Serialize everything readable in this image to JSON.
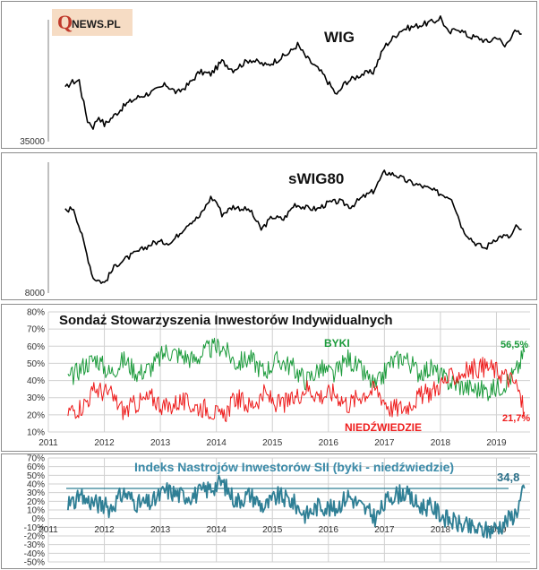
{
  "logo": {
    "q": "Q",
    "text": "NEWS.PL"
  },
  "colors": {
    "index_line": "#000000",
    "bulls": "#1a9a3a",
    "bears": "#ee1c1c",
    "sentiment": "#2f7f95",
    "sentiment_title": "#3a8aa8",
    "sentiment_label": "#2a6f88",
    "logo_bg": "#f6dcc4",
    "logo_red": "#c0392b"
  },
  "chart_data": [
    {
      "type": "line",
      "title": "WIG",
      "xrange": [
        2011,
        2019.6
      ],
      "ylabel_min": "35000",
      "ylim": [
        35000,
        66000
      ],
      "x": [
        2011.3,
        2011.4,
        2011.55,
        2011.6,
        2011.7,
        2011.8,
        2011.9,
        2012.0,
        2012.2,
        2012.4,
        2012.6,
        2012.9,
        2013.1,
        2013.3,
        2013.5,
        2013.7,
        2013.9,
        2014.1,
        2014.3,
        2014.6,
        2014.9,
        2015.1,
        2015.3,
        2015.45,
        2015.6,
        2015.9,
        2016.05,
        2016.15,
        2016.3,
        2016.6,
        2016.8,
        2017.0,
        2017.3,
        2017.6,
        2017.9,
        2018.0,
        2018.15,
        2018.3,
        2018.5,
        2018.7,
        2018.85,
        2019.0,
        2019.15,
        2019.3,
        2019.45
      ],
      "series": [
        {
          "name": "WIG",
          "values": [
            47500,
            49000,
            49500,
            46000,
            40000,
            38500,
            41000,
            39000,
            41500,
            44000,
            45500,
            47000,
            48500,
            46500,
            48500,
            51500,
            51000,
            54000,
            52000,
            54500,
            53000,
            54500,
            56000,
            58000,
            55000,
            51000,
            48000,
            46000,
            49000,
            51000,
            51500,
            57500,
            61500,
            62500,
            63500,
            64500,
            60500,
            62000,
            60000,
            59500,
            58500,
            60000,
            57500,
            61000,
            60500
          ]
        }
      ]
    },
    {
      "type": "line",
      "title": "sWIG80",
      "xrange": [
        2011,
        2019.6
      ],
      "ylabel_min": "8000",
      "ylim": [
        8000,
        18500
      ],
      "x": [
        2011.3,
        2011.45,
        2011.6,
        2011.8,
        2012.0,
        2012.2,
        2012.5,
        2012.7,
        2012.9,
        2013.2,
        2013.5,
        2013.7,
        2013.9,
        2014.0,
        2014.1,
        2014.3,
        2014.6,
        2014.8,
        2015.0,
        2015.2,
        2015.4,
        2015.6,
        2015.8,
        2016.0,
        2016.2,
        2016.4,
        2016.6,
        2016.8,
        2017.0,
        2017.2,
        2017.4,
        2017.6,
        2017.8,
        2018.0,
        2018.2,
        2018.4,
        2018.6,
        2018.8,
        2018.95,
        2019.1,
        2019.25,
        2019.35,
        2019.45
      ],
      "series": [
        {
          "name": "sWIG80",
          "values": [
            14500,
            14700,
            12500,
            9200,
            8800,
            10200,
            11000,
            11500,
            12000,
            12000,
            13500,
            14000,
            15500,
            15200,
            14200,
            14800,
            14500,
            13000,
            14000,
            13800,
            15000,
            14700,
            14600,
            15100,
            15200,
            14800,
            15500,
            16000,
            17500,
            17300,
            16800,
            16500,
            16200,
            15800,
            15500,
            13000,
            12000,
            11500,
            12200,
            12500,
            12400,
            13200,
            13000
          ]
        }
      ]
    },
    {
      "type": "line",
      "title": "Sondaż Stowarzyszenia Inwestorów Indywidualnych",
      "xrange": [
        2011,
        2019.6
      ],
      "ylim": [
        10,
        80
      ],
      "y_ticks": [
        "10%",
        "20%",
        "30%",
        "40%",
        "50%",
        "60%",
        "70%",
        "80%"
      ],
      "x_ticks": [
        "2011",
        "2012",
        "2013",
        "2014",
        "2015",
        "2016",
        "2017",
        "2018",
        "2019"
      ],
      "x": [
        2011.35,
        2011.6,
        2011.85,
        2012.1,
        2012.35,
        2012.6,
        2012.85,
        2013.1,
        2013.35,
        2013.6,
        2013.85,
        2014.1,
        2014.35,
        2014.6,
        2014.85,
        2015.1,
        2015.35,
        2015.6,
        2015.85,
        2016.1,
        2016.35,
        2016.6,
        2016.85,
        2017.1,
        2017.35,
        2017.6,
        2017.85,
        2018.1,
        2018.35,
        2018.6,
        2018.85,
        2019.1,
        2019.35,
        2019.5
      ],
      "series": [
        {
          "name": "BYKI",
          "values": [
            40,
            48,
            53,
            44,
            52,
            44,
            48,
            57,
            55,
            52,
            58,
            60,
            50,
            53,
            45,
            52,
            48,
            40,
            47,
            43,
            53,
            45,
            36,
            50,
            54,
            45,
            47,
            40,
            37,
            35,
            34,
            37,
            45,
            56.5
          ]
        },
        {
          "name": "NIEDŹWIEDZIE",
          "values": [
            22,
            25,
            35,
            32,
            22,
            27,
            30,
            24,
            28,
            25,
            24,
            18,
            30,
            25,
            32,
            26,
            28,
            36,
            31,
            33,
            26,
            32,
            35,
            24,
            24,
            30,
            34,
            40,
            44,
            47,
            48,
            44,
            38,
            21.7
          ]
        }
      ],
      "labels": {
        "bulls": "BYKI",
        "bears": "NIEDŹWIEDZIE",
        "bulls_last": "56,5%",
        "bears_last": "21,7%"
      }
    },
    {
      "type": "line",
      "title": "Indeks Nastrojów Inwestorów SII (byki - niedźwiedzie)",
      "xrange": [
        2011,
        2019.6
      ],
      "ylim": [
        -50,
        70
      ],
      "y_ticks": [
        "-50%",
        "-40%",
        "-30%",
        "-20%",
        "-10%",
        "0%",
        "10%",
        "20%",
        "30%",
        "40%",
        "50%",
        "60%",
        "70%"
      ],
      "x_ticks": [
        "2011",
        "2012",
        "2013",
        "2014",
        "2015",
        "2016",
        "2017",
        "2018",
        "2019"
      ],
      "reference_value": 34.8,
      "last_value_label": "34,8",
      "x": [
        2011.35,
        2011.6,
        2011.85,
        2012.1,
        2012.35,
        2012.6,
        2012.85,
        2013.1,
        2013.35,
        2013.6,
        2013.85,
        2014.1,
        2014.35,
        2014.6,
        2014.85,
        2015.1,
        2015.35,
        2015.6,
        2015.85,
        2016.1,
        2016.35,
        2016.6,
        2016.85,
        2017.1,
        2017.35,
        2017.6,
        2017.85,
        2018.1,
        2018.35,
        2018.6,
        2018.85,
        2019.1,
        2019.35,
        2019.5
      ],
      "series": [
        {
          "name": "SII",
          "values": [
            18,
            23,
            18,
            12,
            30,
            17,
            18,
            33,
            27,
            27,
            34,
            42,
            20,
            28,
            13,
            26,
            20,
            4,
            16,
            10,
            27,
            13,
            1,
            26,
            30,
            15,
            13,
            0,
            -7,
            -12,
            -14,
            -7,
            7,
            34.8
          ]
        }
      ]
    }
  ]
}
